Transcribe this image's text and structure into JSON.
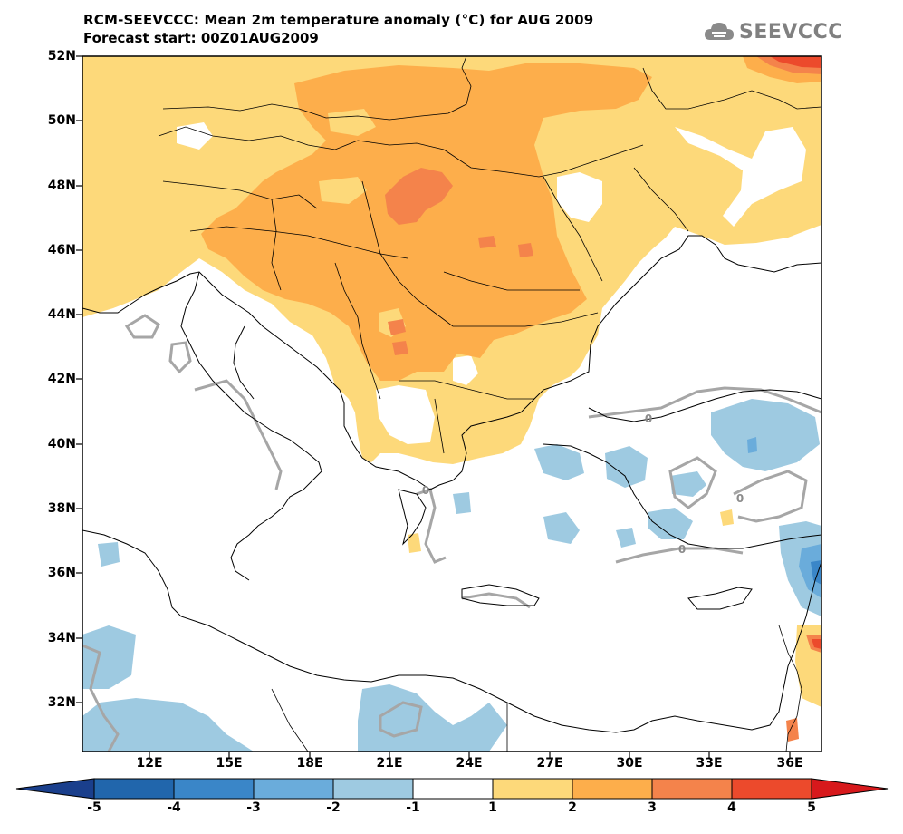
{
  "header": {
    "title": "RCM-SEEVCCC: Mean 2m temperature anomaly (°C) for AUG 2009",
    "subtitle": "Forecast start: 00Z01AUG2009",
    "logo_text": "SEEVCCC"
  },
  "map": {
    "y_ticks": [
      "52N",
      "50N",
      "48N",
      "46N",
      "44N",
      "42N",
      "40N",
      "38N",
      "36N",
      "34N",
      "32N"
    ],
    "x_ticks": [
      "12E",
      "15E",
      "18E",
      "21E",
      "24E",
      "27E",
      "30E",
      "33E",
      "36E"
    ],
    "contour_labels": [
      "0",
      "0",
      "0",
      "0"
    ]
  },
  "colorbar": {
    "labels": [
      "-5",
      "-4",
      "-3",
      "-2",
      "-1",
      "1",
      "2",
      "3",
      "4",
      "5"
    ],
    "colors": [
      "#2166ac",
      "#3a86c8",
      "#6aacdb",
      "#9ecae1",
      "#ffffff",
      "#fdd97a",
      "#fdae4b",
      "#f4834b",
      "#ec4a2c"
    ],
    "low_arrow_color": "#1a3f8c",
    "high_arrow_color": "#d7191c"
  }
}
